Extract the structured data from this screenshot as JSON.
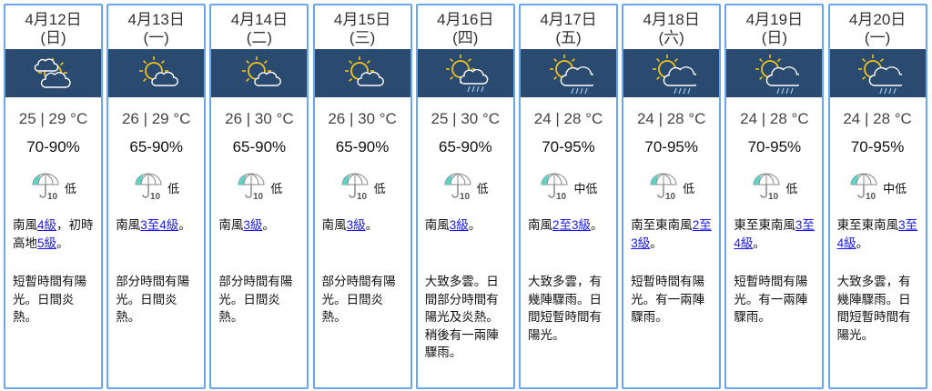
{
  "days": [
    {
      "date": "4月12日",
      "weekday": "(日)",
      "icon": "sun-clouds-icon",
      "temp": "25 | 29 °C",
      "humidity": "70-90%",
      "rain": "低",
      "wind": [
        {
          "t": "南風"
        },
        {
          "t": "4級",
          "link": true
        },
        {
          "t": "，初時高地"
        },
        {
          "t": "5級",
          "link": true
        },
        {
          "t": "。"
        }
      ],
      "desc": "短暫時間有陽光。日間炎熱。"
    },
    {
      "date": "4月13日",
      "weekday": "(一)",
      "icon": "sun-cloud-icon",
      "temp": "26 | 29 °C",
      "humidity": "65-90%",
      "rain": "低",
      "wind": [
        {
          "t": "南風"
        },
        {
          "t": "3至4級",
          "link": true
        },
        {
          "t": "。"
        }
      ],
      "desc": "部分時間有陽光。日間炎熱。"
    },
    {
      "date": "4月14日",
      "weekday": "(二)",
      "icon": "sun-cloud-icon",
      "temp": "26 | 30 °C",
      "humidity": "65-90%",
      "rain": "低",
      "wind": [
        {
          "t": "南風"
        },
        {
          "t": "3級",
          "link": true
        },
        {
          "t": "。"
        }
      ],
      "desc": "部分時間有陽光。日間炎熱。"
    },
    {
      "date": "4月15日",
      "weekday": "(三)",
      "icon": "sun-cloud-icon",
      "temp": "26 | 30 °C",
      "humidity": "65-90%",
      "rain": "低",
      "wind": [
        {
          "t": "南風"
        },
        {
          "t": "3級",
          "link": true
        },
        {
          "t": "。"
        }
      ],
      "desc": "部分時間有陽光。日間炎熱。"
    },
    {
      "date": "4月16日",
      "weekday": "(四)",
      "icon": "sun-cloud-rain-icon",
      "temp": "25 | 30 °C",
      "humidity": "65-90%",
      "rain": "低",
      "wind": [
        {
          "t": "南風"
        },
        {
          "t": "3級",
          "link": true
        },
        {
          "t": "。"
        }
      ],
      "desc": "大致多雲。日間部分時間有陽光及炎熱。稍後有一兩陣驟雨。"
    },
    {
      "date": "4月17日",
      "weekday": "(五)",
      "icon": "sun-showers-icon",
      "temp": "24 | 28 °C",
      "humidity": "70-95%",
      "rain": "中低",
      "wind": [
        {
          "t": "南風"
        },
        {
          "t": "2至3級",
          "link": true
        },
        {
          "t": "。"
        }
      ],
      "desc": "大致多雲，有幾陣驟雨。日間短暫時間有陽光。"
    },
    {
      "date": "4月18日",
      "weekday": "(六)",
      "icon": "sun-showers-icon",
      "temp": "24 | 28 °C",
      "humidity": "70-95%",
      "rain": "低",
      "wind": [
        {
          "t": "南至東南風"
        },
        {
          "t": "2至3級",
          "link": true
        },
        {
          "t": "。"
        }
      ],
      "desc": "短暫時間有陽光。有一兩陣驟雨。"
    },
    {
      "date": "4月19日",
      "weekday": "(日)",
      "icon": "sun-showers-icon",
      "temp": "24 | 28 °C",
      "humidity": "70-95%",
      "rain": "低",
      "wind": [
        {
          "t": "東至東南風"
        },
        {
          "t": "3至4級",
          "link": true
        },
        {
          "t": "。"
        }
      ],
      "desc": "短暫時間有陽光。有一兩陣驟雨。"
    },
    {
      "date": "4月20日",
      "weekday": "(一)",
      "icon": "sun-showers-icon",
      "temp": "24 | 28 °C",
      "humidity": "70-95%",
      "rain": "中低",
      "wind": [
        {
          "t": "東至東南風"
        },
        {
          "t": "3至4級",
          "link": true
        },
        {
          "t": "。"
        }
      ],
      "desc": "大致多雲，有幾陣驟雨。日間短暫時間有陽光。"
    }
  ],
  "colors": {
    "band": "#2b4a6f",
    "border": "#6aa5f0",
    "link": "#1a1aee",
    "sun": "#f0c419",
    "umbrella": "#5fd3c8"
  }
}
